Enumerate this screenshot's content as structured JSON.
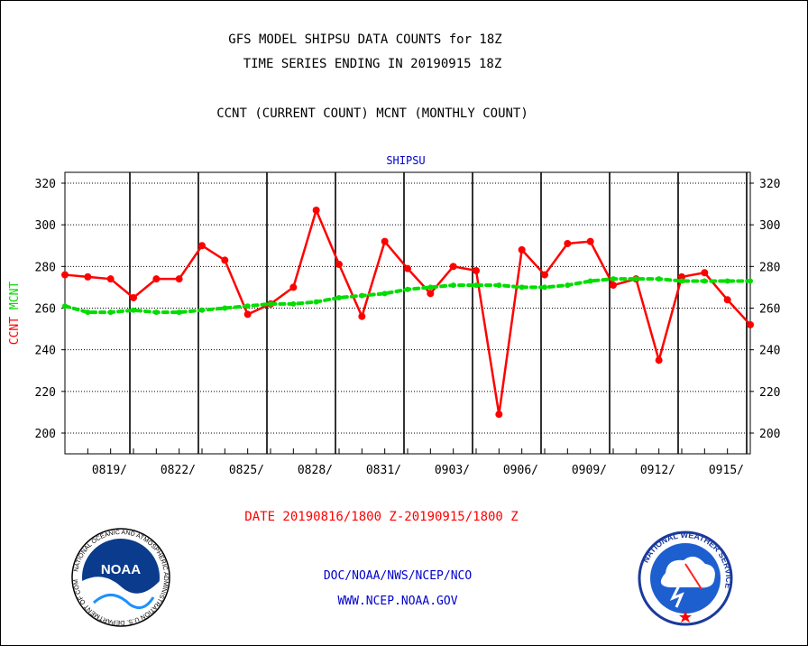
{
  "titles": {
    "line1": "GFS MODEL SHIPSU DATA COUNTS for 18Z",
    "line2": "TIME SERIES ENDING IN 20190915 18Z",
    "line3": "CCNT (CURRENT COUNT) MCNT (MONTHLY COUNT)",
    "chart_subtitle": "SHIPSU"
  },
  "footer": {
    "date_range": "DATE 20190816/1800 Z-20190915/1800 Z",
    "org": "DOC/NOAA/NWS/NCEP/NCO",
    "url": "WWW.NCEP.NOAA.GOV"
  },
  "logos": {
    "noaa_icon": "noaa-logo-icon",
    "nws_icon": "nws-logo-icon",
    "noaa_text": "NOAA",
    "noaa_ring_text": "NATIONAL OCEANIC AND ATMOSPHERIC ADMINISTRATION U.S. DEPARTMENT OF COMMERCE",
    "nws_ring_text": "NATIONAL WEATHER SERVICE"
  },
  "colors": {
    "ccnt": "#ff0000",
    "mcnt": "#00dd00",
    "text": "#000000",
    "link": "#0000cc"
  },
  "chart_data": {
    "type": "line",
    "title": "SHIPSU",
    "ylabel_parts": [
      {
        "text": "CCNT",
        "color": "#ff0000"
      },
      {
        "text": "MCNT",
        "color": "#00dd00"
      }
    ],
    "xlabel": "",
    "ylim": [
      190,
      325
    ],
    "yticks": [
      200,
      220,
      240,
      260,
      280,
      300,
      320
    ],
    "xlim": [
      0,
      30
    ],
    "xtick_labels": [
      {
        "x": 3,
        "label": "0819/"
      },
      {
        "x": 6,
        "label": "0822/"
      },
      {
        "x": 9,
        "label": "0825/"
      },
      {
        "x": 12,
        "label": "0828/"
      },
      {
        "x": 15,
        "label": "0831/"
      },
      {
        "x": 18,
        "label": "0903/"
      },
      {
        "x": 21,
        "label": "0906/"
      },
      {
        "x": 24,
        "label": "0909/"
      },
      {
        "x": 27,
        "label": "0912/"
      },
      {
        "x": 30,
        "label": "0915/"
      }
    ],
    "grid": true,
    "series": [
      {
        "name": "CCNT",
        "color": "#ff0000",
        "style": "solid",
        "x": [
          0,
          1,
          2,
          3,
          4,
          5,
          6,
          7,
          8,
          9,
          10,
          11,
          12,
          13,
          14,
          15,
          16,
          17,
          18,
          19,
          20,
          21,
          22,
          23,
          24,
          25,
          26,
          27,
          28,
          29,
          30
        ],
        "values": [
          276,
          275,
          274,
          265,
          274,
          274,
          290,
          283,
          257,
          262,
          270,
          307,
          281,
          256,
          292,
          279,
          267,
          280,
          278,
          209,
          288,
          276,
          291,
          292,
          271,
          274,
          235,
          275,
          277,
          264,
          252
        ]
      },
      {
        "name": "MCNT",
        "color": "#00dd00",
        "style": "dotted",
        "x": [
          0,
          1,
          2,
          3,
          4,
          5,
          6,
          7,
          8,
          9,
          10,
          11,
          12,
          13,
          14,
          15,
          16,
          17,
          18,
          19,
          20,
          21,
          22,
          23,
          24,
          25,
          26,
          27,
          28,
          29,
          30
        ],
        "values": [
          261,
          258,
          258,
          259,
          258,
          258,
          259,
          260,
          261,
          262,
          262,
          263,
          265,
          266,
          267,
          269,
          270,
          271,
          271,
          271,
          270,
          270,
          271,
          273,
          274,
          274,
          274,
          273,
          273,
          273,
          273
        ]
      }
    ]
  }
}
